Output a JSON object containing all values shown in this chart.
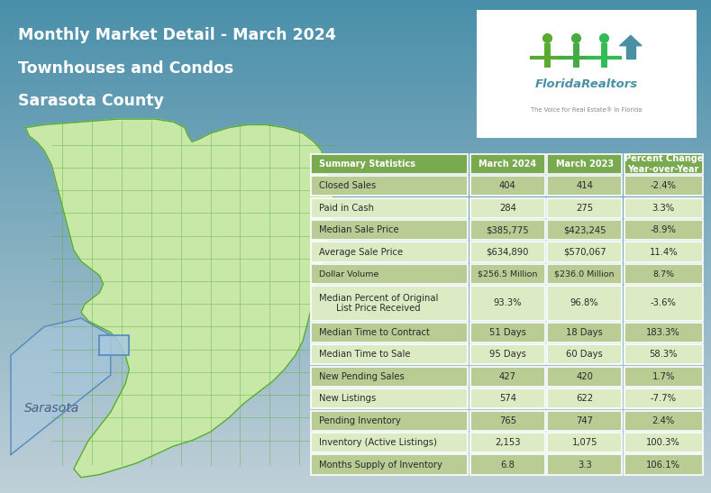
{
  "title_line1": "Monthly Market Detail - March 2024",
  "title_line2": "Townhouses and Condos",
  "title_line3": "Sarasota County",
  "header": [
    "Summary Statistics",
    "March 2024",
    "March 2023",
    "Percent Change\nYear-over-Year"
  ],
  "rows": [
    [
      "Closed Sales",
      "404",
      "414",
      "-2.4%"
    ],
    [
      "Paid in Cash",
      "284",
      "275",
      "3.3%"
    ],
    [
      "Median Sale Price",
      "$385,775",
      "$423,245",
      "-8.9%"
    ],
    [
      "Average Sale Price",
      "$634,890",
      "$570,067",
      "11.4%"
    ],
    [
      "Dollar Volume",
      "$256.5 Million",
      "$236.0 Million",
      "8.7%"
    ],
    [
      "Median Percent of Original\nList Price Received",
      "93.3%",
      "96.8%",
      "-3.6%"
    ],
    [
      "Median Time to Contract",
      "51 Days",
      "18 Days",
      "183.3%"
    ],
    [
      "Median Time to Sale",
      "95 Days",
      "60 Days",
      "58.3%"
    ],
    [
      "New Pending Sales",
      "427",
      "420",
      "1.7%"
    ],
    [
      "New Listings",
      "574",
      "622",
      "-7.7%"
    ],
    [
      "Pending Inventory",
      "765",
      "747",
      "2.4%"
    ],
    [
      "Inventory (Active Listings)",
      "2,153",
      "1,075",
      "100.3%"
    ],
    [
      "Months Supply of Inventory",
      "6.8",
      "3.3",
      "106.1%"
    ]
  ],
  "bg_top_color": "#4a8faa",
  "bg_bottom_color": "#c0d0d8",
  "header_bg": "#7aaa50",
  "row_bg_dark": "#b8cc94",
  "row_bg_light": "#ddebc4",
  "map_outline_color": "#55aa33",
  "map_fill_color": "#c8e8a8",
  "sarasota_fill_color": "#a8c8e0",
  "sarasota_outline_color": "#5588bb",
  "sarasota_label_color": "#4a6080",
  "fig_width": 7.89,
  "fig_height": 5.47
}
